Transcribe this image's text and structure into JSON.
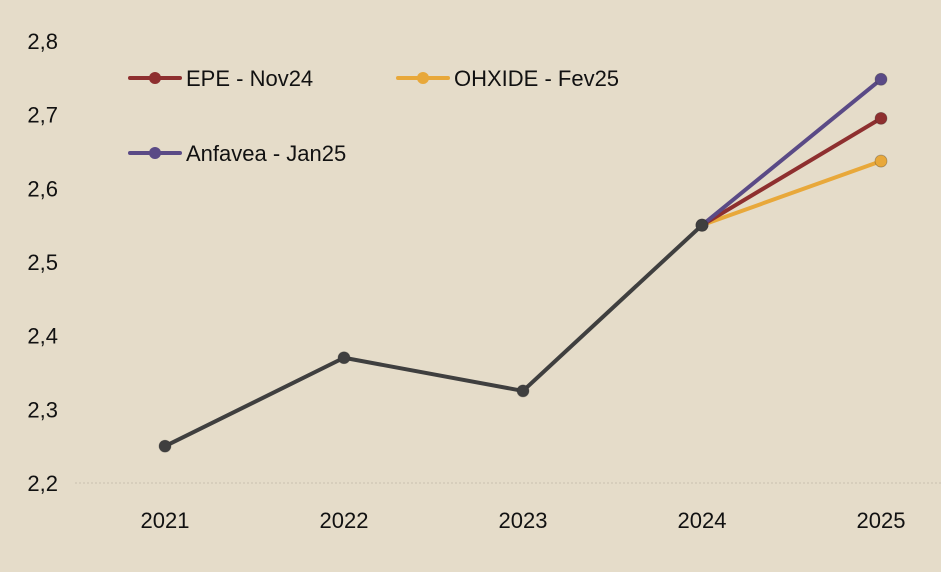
{
  "chart_data": {
    "type": "line",
    "title": "",
    "xlabel": "",
    "ylabel": "",
    "x": [
      "2021",
      "2022",
      "2023",
      "2024",
      "2025"
    ],
    "y_ticks": [
      "2,2",
      "2,3",
      "2,4",
      "2,5",
      "2,6",
      "2,7",
      "2,8"
    ],
    "ylim": [
      2.2,
      2.8
    ],
    "grid": "baseline only",
    "legend_placement": "top-left",
    "series": [
      {
        "id": "historical",
        "values": [
          2.25,
          2.37,
          2.325,
          2.55,
          null
        ],
        "color": "#3f3f3f"
      },
      {
        "name": "EPE - Nov24",
        "values": [
          null,
          null,
          null,
          2.55,
          2.695
        ],
        "color": "#8e2f2f"
      },
      {
        "name": "OHXIDE - Fev25",
        "values": [
          null,
          null,
          null,
          2.55,
          2.637
        ],
        "color": "#e8a83a"
      },
      {
        "name": "Anfavea - Jan25",
        "values": [
          null,
          null,
          null,
          2.55,
          2.748
        ],
        "color": "#5a4a86"
      }
    ]
  }
}
